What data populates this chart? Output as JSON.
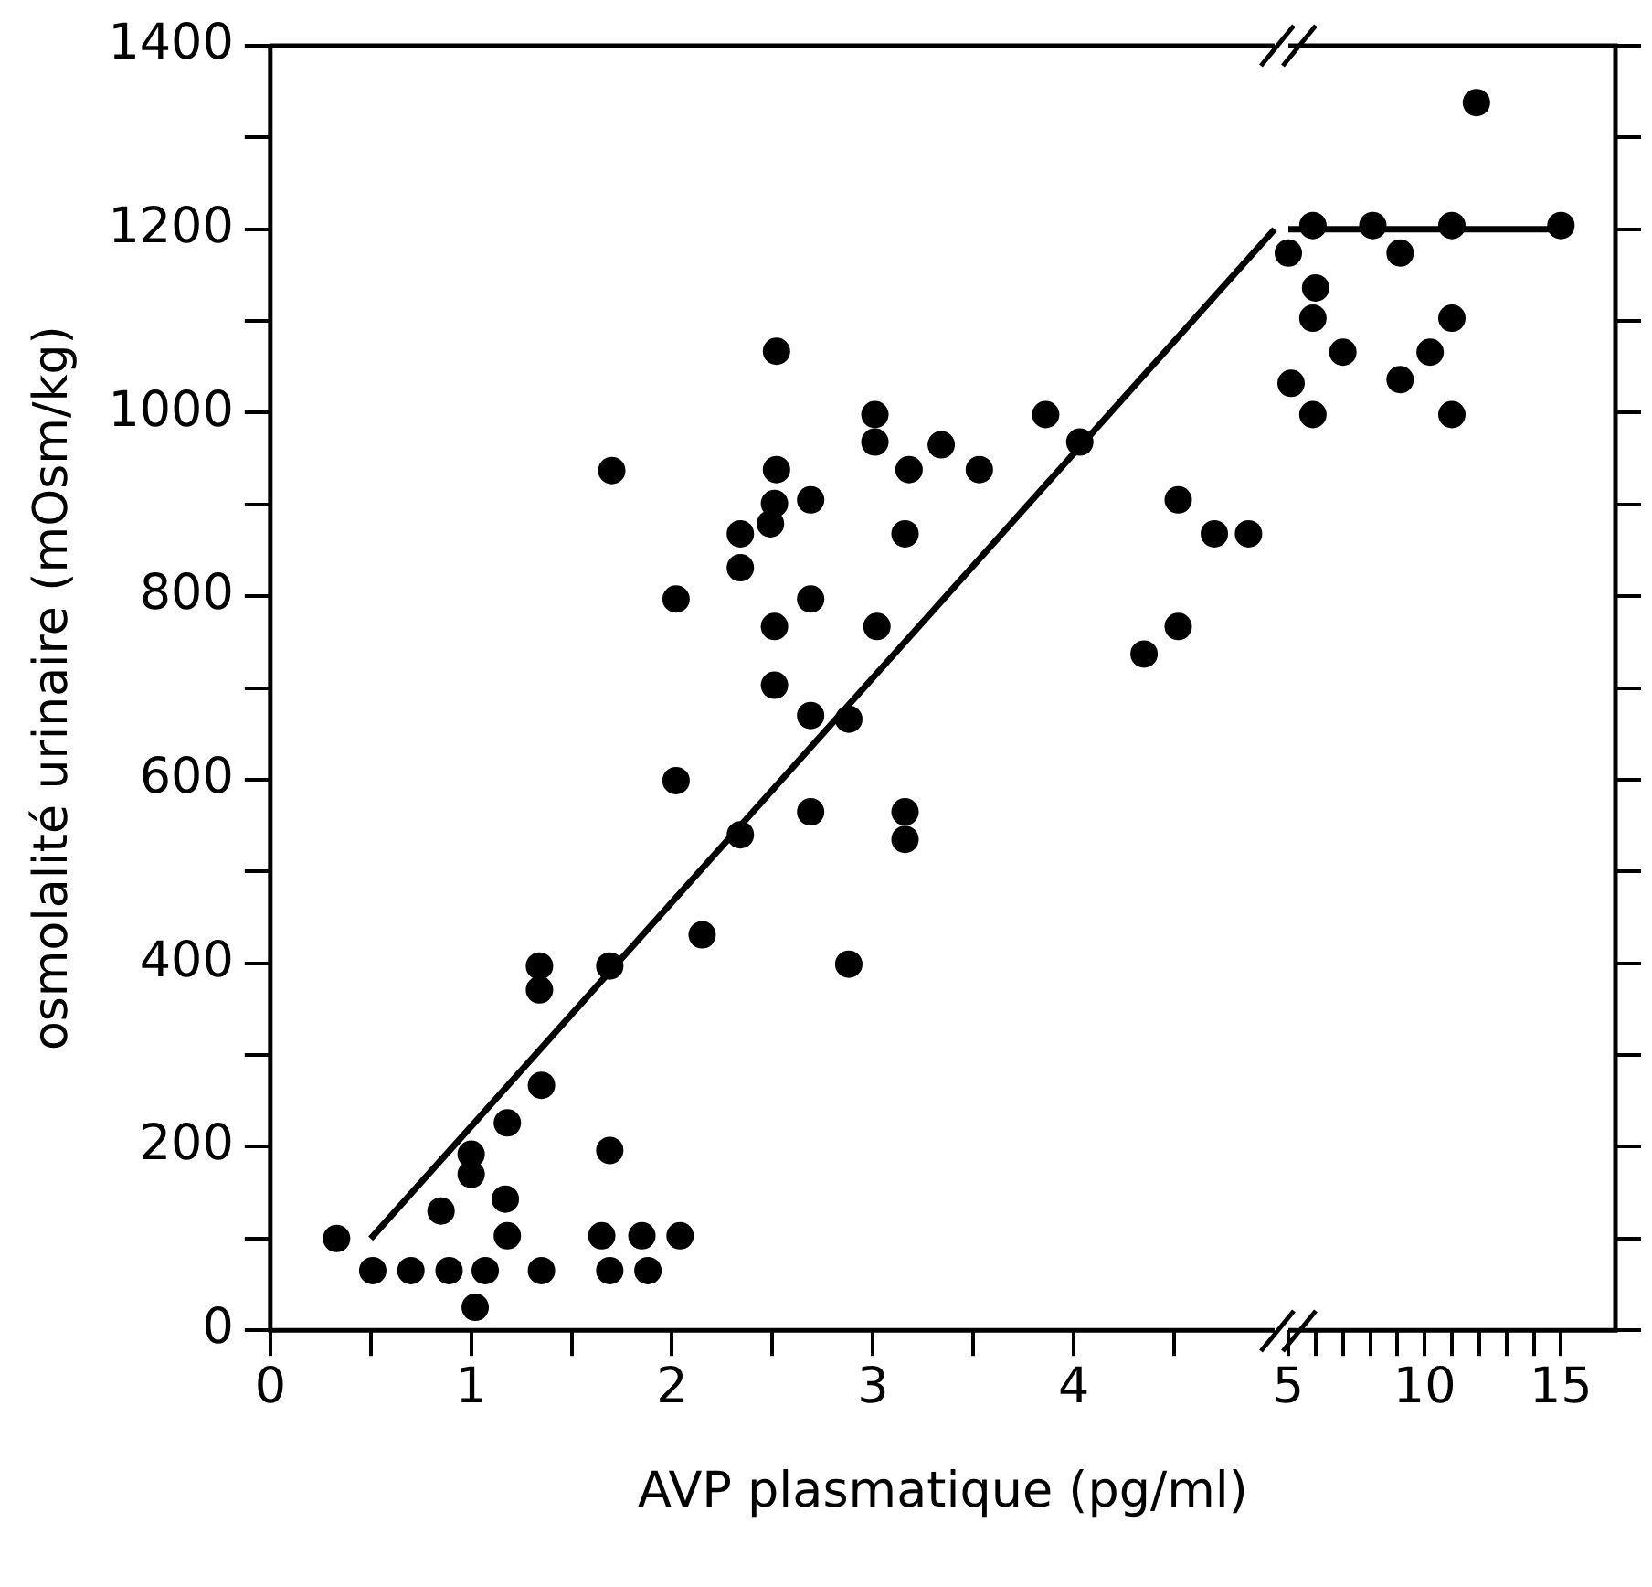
{
  "chart_data": [
    {
      "type": "scatter",
      "xlabel": "AVP plasmatique (pg/ml)",
      "ylabel": "osmolalité urinaire (mOsm/kg)",
      "xlim": [
        0,
        5
      ],
      "ylim": [
        0,
        1400
      ],
      "xticks": [
        0,
        {
          "value": 0.5,
          "label": null
        },
        1,
        {
          "value": 1.5,
          "label": null
        },
        2,
        {
          "value": 2.5,
          "label": null
        },
        3,
        {
          "value": 3.5,
          "label": null
        },
        4,
        {
          "value": 4.5,
          "label": null
        }
      ],
      "yticks": [
        0,
        {
          "value": 100,
          "label": null
        },
        200,
        {
          "value": 300,
          "label": null
        },
        400,
        {
          "value": 500,
          "label": null
        },
        600,
        {
          "value": 700,
          "label": null
        },
        800,
        {
          "value": 900,
          "label": null
        },
        1000,
        {
          "value": 1100,
          "label": null
        },
        1200,
        {
          "value": 1300,
          "label": null
        },
        1400
      ],
      "grid": false,
      "legend": false,
      "marker": "circle",
      "series": [
        {
          "color": "#000000",
          "x": [
            0.33,
            0.51,
            0.7,
            0.89,
            1.02,
            1.07,
            1.17,
            1.18,
            1.35,
            0.85,
            1.0,
            1.0,
            1.18,
            1.35,
            1.34,
            1.34,
            1.69,
            1.69,
            1.65,
            1.69,
            1.85,
            1.88,
            2.04,
            2.15,
            2.34,
            2.02,
            2.52,
            1.7,
            2.52,
            2.69,
            2.51,
            2.34,
            2.34,
            2.49,
            2.02,
            2.69,
            2.51,
            3.02,
            2.51,
            2.69,
            2.88,
            2.88,
            2.69,
            3.16,
            3.16,
            3.01,
            3.01,
            3.18,
            3.34,
            3.53,
            3.16,
            3.86,
            4.03,
            4.35,
            4.52,
            4.52,
            4.7,
            4.87
          ],
          "values": [
            100,
            65,
            65,
            65,
            25,
            65,
            143,
            103,
            65,
            130,
            170,
            192,
            226,
            267,
            397,
            371,
            397,
            196,
            103,
            65,
            103,
            65,
            103,
            431,
            540,
            599,
            1067,
            937,
            938,
            905,
            901,
            868,
            831,
            879,
            797,
            797,
            767,
            767,
            703,
            670,
            666,
            399,
            565,
            565,
            535,
            998,
            968,
            938,
            965,
            938,
            868,
            998,
            968,
            737,
            905,
            767,
            868,
            868
          ]
        },
        {
          "type": "line",
          "color": "#000000",
          "marker": "none",
          "line_style": "solid",
          "x": [
            0.5,
            5
          ],
          "values": [
            100,
            1200
          ]
        }
      ]
    },
    {
      "type": "scatter",
      "xlim": [
        5,
        17
      ],
      "ylim": [
        0,
        1400
      ],
      "tick_labels": "x",
      "xticks": [
        5,
        {
          "value": 6,
          "label": null
        },
        {
          "value": 7,
          "label": null
        },
        {
          "value": 8,
          "label": null
        },
        {
          "value": 9,
          "label": null
        },
        10,
        {
          "value": 11,
          "label": null
        },
        {
          "value": 12,
          "label": null
        },
        {
          "value": 13,
          "label": null
        },
        {
          "value": 14,
          "label": null
        },
        15
      ],
      "yticks": [
        0,
        100,
        200,
        300,
        400,
        500,
        600,
        700,
        800,
        900,
        1000,
        1100,
        1200,
        1300,
        1400
      ],
      "grid": false,
      "legend": false,
      "marker": "circle",
      "series": [
        {
          "color": "#000000",
          "x": [
            5.0,
            5.1,
            5.9,
            5.9,
            5.9,
            6.0,
            7.0,
            8.1,
            9.1,
            9.1,
            10.2,
            11.0,
            11.0,
            11.0,
            11.9,
            15.0
          ],
          "values": [
            1174,
            1032,
            1204,
            1103,
            998,
            1136,
            1066,
            1204,
            1174,
            1036,
            1066,
            1204,
            1103,
            998,
            1338,
            1204
          ]
        },
        {
          "type": "line",
          "color": "#000000",
          "marker": "none",
          "line_style": "solid",
          "x": [
            5,
            15
          ],
          "values": [
            1200,
            1200
          ]
        }
      ]
    }
  ]
}
